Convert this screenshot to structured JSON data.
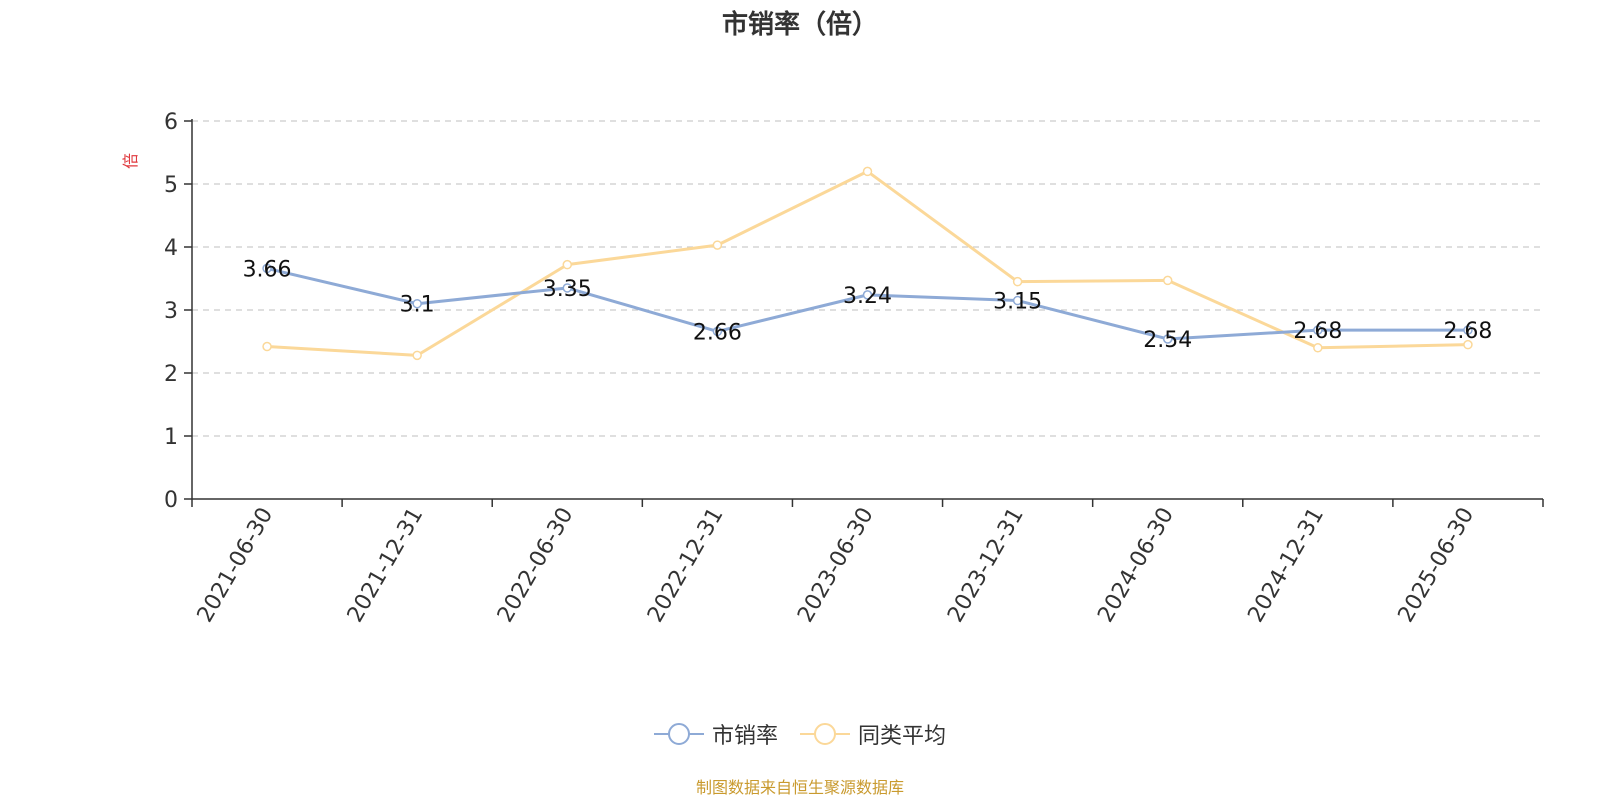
{
  "chart_data": {
    "type": "line",
    "title": "市销率（倍）",
    "ylabel": "倍",
    "ylim": [
      0,
      6
    ],
    "yticks": [
      0,
      1,
      2,
      3,
      4,
      5,
      6
    ],
    "grid": true,
    "legend_position": "bottom",
    "x": [
      "2021-06-30",
      "2021-12-31",
      "2022-06-30",
      "2022-12-31",
      "2023-06-30",
      "2023-12-31",
      "2024-06-30",
      "2024-12-31",
      "2025-06-30"
    ],
    "series": [
      {
        "name": "市销率",
        "color": "#8eaad6",
        "show_labels": true,
        "values": [
          3.66,
          3.1,
          3.35,
          2.66,
          3.24,
          3.15,
          2.54,
          2.68,
          2.68
        ]
      },
      {
        "name": "同类平均",
        "color": "#fbd899",
        "show_labels": false,
        "values": [
          2.42,
          2.28,
          3.72,
          4.03,
          5.2,
          3.45,
          3.47,
          2.4,
          2.45
        ]
      }
    ]
  },
  "colors": {
    "ylabel": "#e0393e",
    "axis": "#333333",
    "grid": "#cccccc",
    "source_note": "#c99a2e"
  },
  "source_note": "制图数据来自恒生聚源数据库"
}
